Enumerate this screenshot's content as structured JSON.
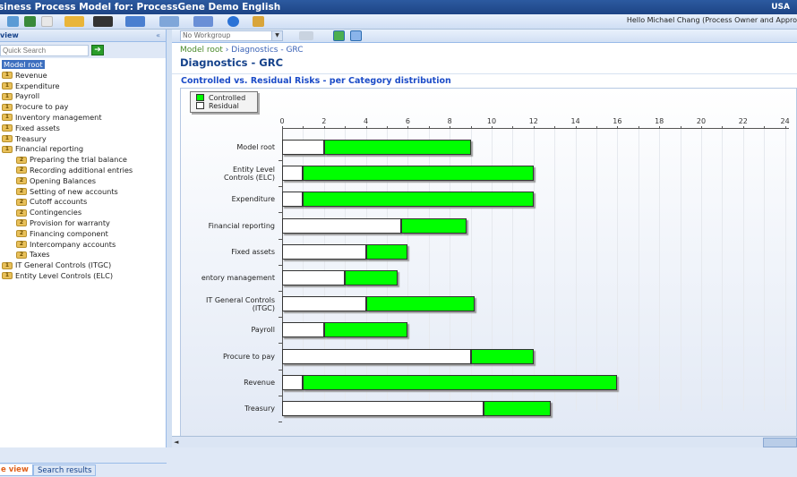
{
  "window": {
    "title": "siness Process Model for: ProcessGene Demo English",
    "locale": "USA"
  },
  "toolbar": {
    "greeting": "Hello Michael Chang (Process Owner and Appro"
  },
  "left_panel": {
    "header": "view",
    "collapse_icon": "«",
    "quick_search_placeholder": "Quick Search",
    "go_icon": "➔",
    "tree": [
      {
        "label": "Model root",
        "level": 0,
        "selected": true,
        "badge": ""
      },
      {
        "label": "Revenue",
        "level": 0,
        "badge": "1"
      },
      {
        "label": "Expenditure",
        "level": 0,
        "badge": "1"
      },
      {
        "label": "Payroll",
        "level": 0,
        "badge": "1"
      },
      {
        "label": "Procure to pay",
        "level": 0,
        "badge": "1"
      },
      {
        "label": "Inventory management",
        "level": 0,
        "badge": "1"
      },
      {
        "label": "Fixed assets",
        "level": 0,
        "badge": "1"
      },
      {
        "label": "Treasury",
        "level": 0,
        "badge": "1"
      },
      {
        "label": "Financial reporting",
        "level": 0,
        "badge": "1"
      },
      {
        "label": "Preparing the trial balance",
        "level": 1,
        "badge": "2"
      },
      {
        "label": "Recording additional entries",
        "level": 1,
        "badge": "2"
      },
      {
        "label": "Opening Balances",
        "level": 1,
        "badge": "2"
      },
      {
        "label": "Setting of new accounts",
        "level": 1,
        "badge": "2"
      },
      {
        "label": "Cutoff accounts",
        "level": 1,
        "badge": "2"
      },
      {
        "label": "Contingencies",
        "level": 1,
        "badge": "2"
      },
      {
        "label": "Provision for warranty",
        "level": 1,
        "badge": "2"
      },
      {
        "label": "Financing component",
        "level": 1,
        "badge": "2"
      },
      {
        "label": "Intercompany accounts",
        "level": 1,
        "badge": "2"
      },
      {
        "label": "Taxes",
        "level": 1,
        "badge": "2"
      },
      {
        "label": "IT General Controls (ITGC)",
        "level": 0,
        "badge": "1"
      },
      {
        "label": "Entity Level Controls (ELC)",
        "level": 0,
        "badge": "1"
      }
    ],
    "tabs": [
      {
        "label": "e view",
        "active": true
      },
      {
        "label": "Search results",
        "active": false
      }
    ]
  },
  "main": {
    "workgroup_select": "No Workgroup",
    "breadcrumb": {
      "root": "Model root",
      "separator": " › ",
      "current": "Diagnostics - GRC"
    },
    "page_title": "Diagnostics - GRC",
    "chart_title": "Controlled vs. Residual Risks - per Category distribution"
  },
  "colors": {
    "controlled": "#00ff00",
    "residual": "#ffffff",
    "title_bar": "#2c5aa0",
    "heading": "#15428b"
  },
  "chart_data": {
    "type": "bar",
    "orientation": "horizontal",
    "stacked": true,
    "title": "Controlled vs. Residual Risks - per Category distribution",
    "xlabel": "",
    "ylabel": "",
    "xlim": [
      0,
      24
    ],
    "xticks": [
      0,
      2,
      4,
      6,
      8,
      10,
      12,
      14,
      16,
      18,
      20,
      22,
      24
    ],
    "grid": true,
    "legend_position": "top-left",
    "categories": [
      "Model root",
      "Entity Level Controls (ELC)",
      "Expenditure",
      "Financial reporting",
      "Fixed assets",
      "Inventory management",
      "IT General Controls (ITGC)",
      "Payroll",
      "Procure to pay",
      "Revenue",
      "Treasury"
    ],
    "category_labels_display": [
      "Model root",
      "Entity Level\nControls (ELC)",
      "Expenditure",
      "Financial reporting",
      "Fixed assets",
      "entory management",
      "IT General Controls\n(ITGC)",
      "Payroll",
      "Procure to pay",
      "Revenue",
      "Treasury"
    ],
    "series": [
      {
        "name": "Residual",
        "color": "#ffffff",
        "values": [
          2,
          1,
          1,
          5.7,
          4,
          3,
          4,
          2,
          9,
          1,
          9.6
        ]
      },
      {
        "name": "Controlled",
        "color": "#00ff00",
        "values": [
          7,
          11,
          11,
          3.1,
          2,
          2.5,
          5.2,
          4,
          3,
          15,
          3.2
        ]
      }
    ],
    "totals": [
      9,
      12,
      12,
      8.8,
      6,
      5.5,
      9.2,
      6,
      12,
      16,
      12.8
    ]
  }
}
